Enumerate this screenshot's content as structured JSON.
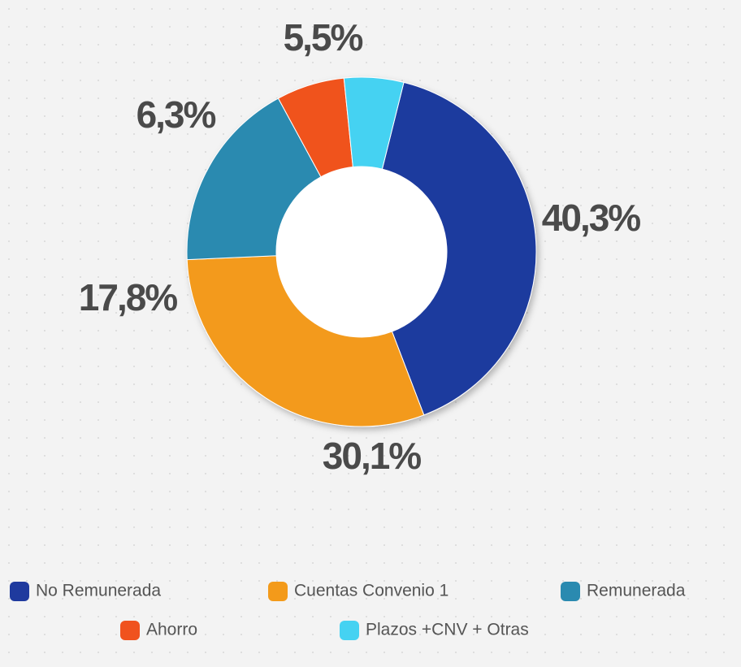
{
  "chart_data": {
    "type": "donut",
    "categories": [
      "No Remunerada",
      "Cuentas Convenio 1",
      "Remunerada",
      "Ahorro",
      "Plazos +CNV + Otras"
    ],
    "values": [
      40.3,
      30.1,
      17.8,
      6.3,
      5.5
    ],
    "value_labels": [
      "40,3%",
      "30,1%",
      "17,8%",
      "6,3%",
      "5,5%"
    ],
    "colors": [
      "#1f3a9e",
      "#f39a1a",
      "#2a8ab0",
      "#f0521e",
      "#45d2f2"
    ]
  }
}
